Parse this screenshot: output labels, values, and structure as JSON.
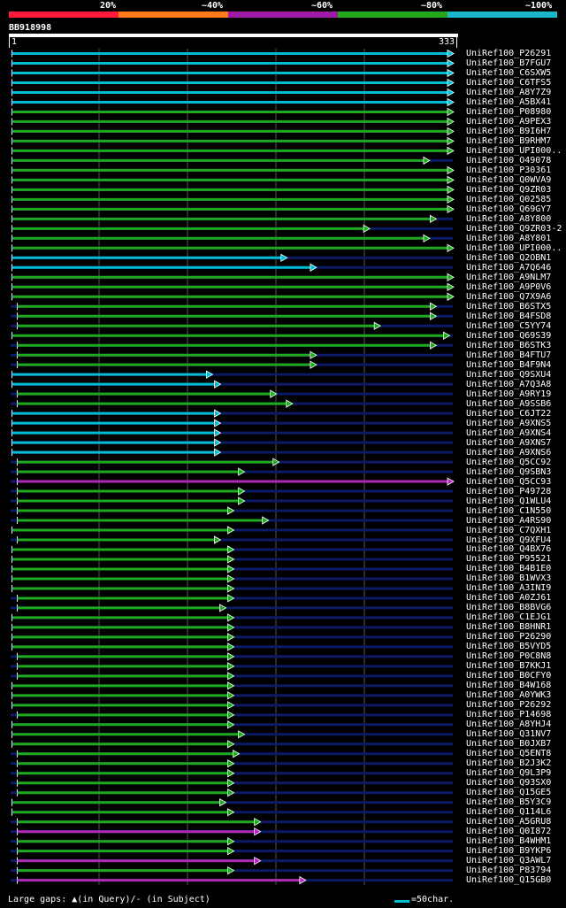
{
  "legend": {
    "labels": [
      "20%",
      "~40%",
      "~60%",
      "~80%",
      "~100%"
    ],
    "colors": [
      "#ff1a3c",
      "#ff7a1a",
      "#a01aa8",
      "#22a81a",
      "#1ab8c8"
    ]
  },
  "query": {
    "name": "BB918998",
    "start_label": "1",
    "end_label": "333",
    "length": 333
  },
  "colors": {
    "background": "#000000",
    "cyan": "#00bcd4",
    "green": "#1eaa1e",
    "magenta": "#b02ab8",
    "navy": "#0d1a66",
    "grid": "#555555"
  },
  "hits": [
    {
      "id": "UniRef100_P26291",
      "color": "cyan",
      "start": 2,
      "end": 333
    },
    {
      "id": "UniRef100_B7FGU7",
      "color": "cyan",
      "start": 2,
      "end": 333
    },
    {
      "id": "UniRef100_C6SXW5",
      "color": "cyan",
      "start": 2,
      "end": 333
    },
    {
      "id": "UniRef100_C6TFS5",
      "color": "cyan",
      "start": 2,
      "end": 333
    },
    {
      "id": "UniRef100_A8Y7Z9",
      "color": "cyan",
      "start": 2,
      "end": 333
    },
    {
      "id": "UniRef100_A5BX41",
      "color": "cyan",
      "start": 2,
      "end": 333
    },
    {
      "id": "UniRef100_P08980",
      "color": "green",
      "start": 2,
      "end": 333
    },
    {
      "id": "UniRef100_A9PEX3",
      "color": "green",
      "start": 2,
      "end": 333
    },
    {
      "id": "UniRef100_B9I6H7",
      "color": "green",
      "start": 2,
      "end": 333
    },
    {
      "id": "UniRef100_B9RHM7",
      "color": "green",
      "start": 2,
      "end": 333
    },
    {
      "id": "UniRef100_UPI000..",
      "color": "green",
      "start": 2,
      "end": 333
    },
    {
      "id": "UniRef100_O49078",
      "color": "green",
      "start": 2,
      "end": 315
    },
    {
      "id": "UniRef100_P30361",
      "color": "green",
      "start": 2,
      "end": 333
    },
    {
      "id": "UniRef100_Q0WVA9",
      "color": "green",
      "start": 2,
      "end": 333
    },
    {
      "id": "UniRef100_Q9ZR03",
      "color": "green",
      "start": 2,
      "end": 333
    },
    {
      "id": "UniRef100_Q02585",
      "color": "green",
      "start": 2,
      "end": 333
    },
    {
      "id": "UniRef100_Q69GY7",
      "color": "green",
      "start": 2,
      "end": 333
    },
    {
      "id": "UniRef100_A8Y800",
      "color": "green",
      "start": 2,
      "end": 320
    },
    {
      "id": "UniRef100_Q9ZR03-2",
      "color": "green",
      "start": 2,
      "end": 270
    },
    {
      "id": "UniRef100_A8Y801",
      "color": "green",
      "start": 2,
      "end": 315
    },
    {
      "id": "UniRef100_UPI000..",
      "color": "green",
      "start": 2,
      "end": 333
    },
    {
      "id": "UniRef100_Q2OBN1",
      "color": "cyan",
      "start": 2,
      "end": 208
    },
    {
      "id": "UniRef100_A7Q646",
      "color": "cyan",
      "start": 2,
      "end": 230
    },
    {
      "id": "UniRef100_A9NLM7",
      "color": "green",
      "start": 2,
      "end": 333
    },
    {
      "id": "UniRef100_A9P0V6",
      "color": "green",
      "start": 2,
      "end": 333
    },
    {
      "id": "UniRef100_Q7X9A6",
      "color": "green",
      "start": 2,
      "end": 333
    },
    {
      "id": "UniRef100_B6STX5",
      "color": "green",
      "start": 6,
      "end": 320
    },
    {
      "id": "UniRef100_B4FSD8",
      "color": "green",
      "start": 6,
      "end": 320
    },
    {
      "id": "UniRef100_C5YY74",
      "color": "green",
      "start": 6,
      "end": 278
    },
    {
      "id": "UniRef100_Q69S39",
      "color": "green",
      "start": 2,
      "end": 330
    },
    {
      "id": "UniRef100_B6STK3",
      "color": "green",
      "start": 6,
      "end": 320
    },
    {
      "id": "UniRef100_B4FTU7",
      "color": "green",
      "start": 6,
      "end": 230
    },
    {
      "id": "UniRef100_B4F9N4",
      "color": "green",
      "start": 6,
      "end": 230
    },
    {
      "id": "UniRef100_Q9SXU4",
      "color": "cyan",
      "start": 2,
      "end": 152
    },
    {
      "id": "UniRef100_A7Q3A8",
      "color": "cyan",
      "start": 2,
      "end": 158
    },
    {
      "id": "UniRef100_A9RY19",
      "color": "green",
      "start": 6,
      "end": 200
    },
    {
      "id": "UniRef100_A9SSB6",
      "color": "green",
      "start": 6,
      "end": 212
    },
    {
      "id": "UniRef100_C6JT22",
      "color": "cyan",
      "start": 2,
      "end": 158
    },
    {
      "id": "UniRef100_A9XNS5",
      "color": "cyan",
      "start": 2,
      "end": 158
    },
    {
      "id": "UniRef100_A9XNS4",
      "color": "cyan",
      "start": 2,
      "end": 158
    },
    {
      "id": "UniRef100_A9XNS7",
      "color": "cyan",
      "start": 2,
      "end": 158
    },
    {
      "id": "UniRef100_A9XNS6",
      "color": "cyan",
      "start": 2,
      "end": 158
    },
    {
      "id": "UniRef100_Q5CC92",
      "color": "green",
      "start": 6,
      "end": 202
    },
    {
      "id": "UniRef100_Q9SBN3",
      "color": "green",
      "start": 6,
      "end": 176
    },
    {
      "id": "UniRef100_Q5CC93",
      "color": "magenta",
      "start": 6,
      "end": 333
    },
    {
      "id": "UniRef100_P49728",
      "color": "green",
      "start": 6,
      "end": 176
    },
    {
      "id": "UniRef100_Q1WLU4",
      "color": "green",
      "start": 6,
      "end": 176
    },
    {
      "id": "UniRef100_C1N550",
      "color": "green",
      "start": 6,
      "end": 168
    },
    {
      "id": "UniRef100_A4RS90",
      "color": "green",
      "start": 6,
      "end": 194
    },
    {
      "id": "UniRef100_C7QXH1",
      "color": "green",
      "start": 2,
      "end": 168
    },
    {
      "id": "UniRef100_Q9XFU4",
      "color": "green",
      "start": 6,
      "end": 158
    },
    {
      "id": "UniRef100_Q4BX76",
      "color": "green",
      "start": 2,
      "end": 168
    },
    {
      "id": "UniRef100_P95521",
      "color": "green",
      "start": 2,
      "end": 168
    },
    {
      "id": "UniRef100_B4B1E0",
      "color": "green",
      "start": 2,
      "end": 168
    },
    {
      "id": "UniRef100_B1WVX3",
      "color": "green",
      "start": 2,
      "end": 168
    },
    {
      "id": "UniRef100_A3INI9",
      "color": "green",
      "start": 2,
      "end": 168
    },
    {
      "id": "UniRef100_A0ZJ61",
      "color": "green",
      "start": 6,
      "end": 168
    },
    {
      "id": "UniRef100_B8BVG6",
      "color": "green",
      "start": 6,
      "end": 162
    },
    {
      "id": "UniRef100_C1EJG1",
      "color": "green",
      "start": 2,
      "end": 168
    },
    {
      "id": "UniRef100_B8HNR1",
      "color": "green",
      "start": 2,
      "end": 168
    },
    {
      "id": "UniRef100_P26290",
      "color": "green",
      "start": 2,
      "end": 168
    },
    {
      "id": "UniRef100_B5VYD5",
      "color": "green",
      "start": 2,
      "end": 168
    },
    {
      "id": "UniRef100_P0C8N8",
      "color": "green",
      "start": 6,
      "end": 168
    },
    {
      "id": "UniRef100_B7KKJ1",
      "color": "green",
      "start": 6,
      "end": 168
    },
    {
      "id": "UniRef100_B0CFY0",
      "color": "green",
      "start": 6,
      "end": 168
    },
    {
      "id": "UniRef100_B4W168",
      "color": "green",
      "start": 2,
      "end": 168
    },
    {
      "id": "UniRef100_A0YWK3",
      "color": "green",
      "start": 2,
      "end": 168
    },
    {
      "id": "UniRef100_P26292",
      "color": "green",
      "start": 2,
      "end": 168
    },
    {
      "id": "UniRef100_P14698",
      "color": "green",
      "start": 6,
      "end": 168
    },
    {
      "id": "UniRef100_A8YHJ4",
      "color": "green",
      "start": 2,
      "end": 168
    },
    {
      "id": "UniRef100_Q31NV7",
      "color": "green",
      "start": 2,
      "end": 176
    },
    {
      "id": "UniRef100_B0JXB7",
      "color": "green",
      "start": 2,
      "end": 168
    },
    {
      "id": "UniRef100_Q5ENT8",
      "color": "green",
      "start": 6,
      "end": 172
    },
    {
      "id": "UniRef100_B2J3K2",
      "color": "green",
      "start": 6,
      "end": 168
    },
    {
      "id": "UniRef100_Q9L3P9",
      "color": "green",
      "start": 6,
      "end": 168
    },
    {
      "id": "UniRef100_Q93SX0",
      "color": "green",
      "start": 6,
      "end": 168
    },
    {
      "id": "UniRef100_Q15GE5",
      "color": "green",
      "start": 6,
      "end": 168
    },
    {
      "id": "UniRef100_B5Y3C9",
      "color": "green",
      "start": 2,
      "end": 162
    },
    {
      "id": "UniRef100_Q114L6",
      "color": "green",
      "start": 2,
      "end": 168
    },
    {
      "id": "UniRef100_A5GRU8",
      "color": "green",
      "start": 6,
      "end": 188
    },
    {
      "id": "UniRef100_Q0I872",
      "color": "magenta",
      "start": 6,
      "end": 188
    },
    {
      "id": "UniRef100_B4WHM1",
      "color": "green",
      "start": 6,
      "end": 168
    },
    {
      "id": "UniRef100_B9YKP6",
      "color": "green",
      "start": 6,
      "end": 168
    },
    {
      "id": "UniRef100_Q3AWL7",
      "color": "magenta",
      "start": 6,
      "end": 188
    },
    {
      "id": "UniRef100_P83794",
      "color": "green",
      "start": 6,
      "end": 168
    },
    {
      "id": "UniRef100_Q15GB0",
      "color": "magenta",
      "start": 6,
      "end": 222
    }
  ],
  "footer": {
    "gaps_text": "Large gaps: ▲(in Query)/- (in Subject)",
    "scale_text": "=50char."
  }
}
